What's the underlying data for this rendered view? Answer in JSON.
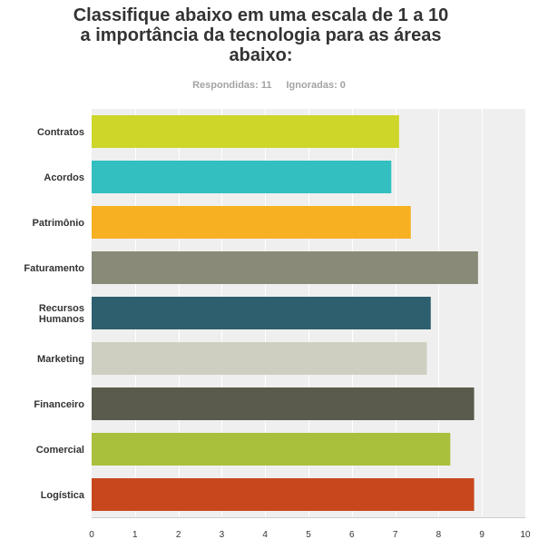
{
  "title_lines": [
    "Classifique abaixo em uma escala de 1 a 10",
    "a importância da tecnologia para as áreas",
    "abaixo:"
  ],
  "stats": {
    "answered": "Respondidas: 11",
    "skipped": "Ignoradas: 0"
  },
  "chart_data": {
    "type": "bar",
    "orientation": "horizontal",
    "categories": [
      [
        "Contratos"
      ],
      [
        "Acordos"
      ],
      [
        "Patrimônio"
      ],
      [
        "Faturamento"
      ],
      [
        "Recursos",
        "Humanos"
      ],
      [
        "Marketing"
      ],
      [
        "Financeiro"
      ],
      [
        "Comercial"
      ],
      [
        "Logística"
      ]
    ],
    "values": [
      7.09,
      6.91,
      7.36,
      8.91,
      7.82,
      7.73,
      8.82,
      8.27,
      8.82
    ],
    "colors": [
      "#cdd629",
      "#33bfc0",
      "#f7b022",
      "#8a8a79",
      "#2e5f6e",
      "#cfcfc1",
      "#5b5b4d",
      "#a8c03b",
      "#c8471d"
    ],
    "xlim": [
      0,
      10
    ],
    "xticks": [
      "0",
      "1",
      "2",
      "3",
      "4",
      "5",
      "6",
      "7",
      "8",
      "9",
      "10"
    ],
    "grid": true
  }
}
